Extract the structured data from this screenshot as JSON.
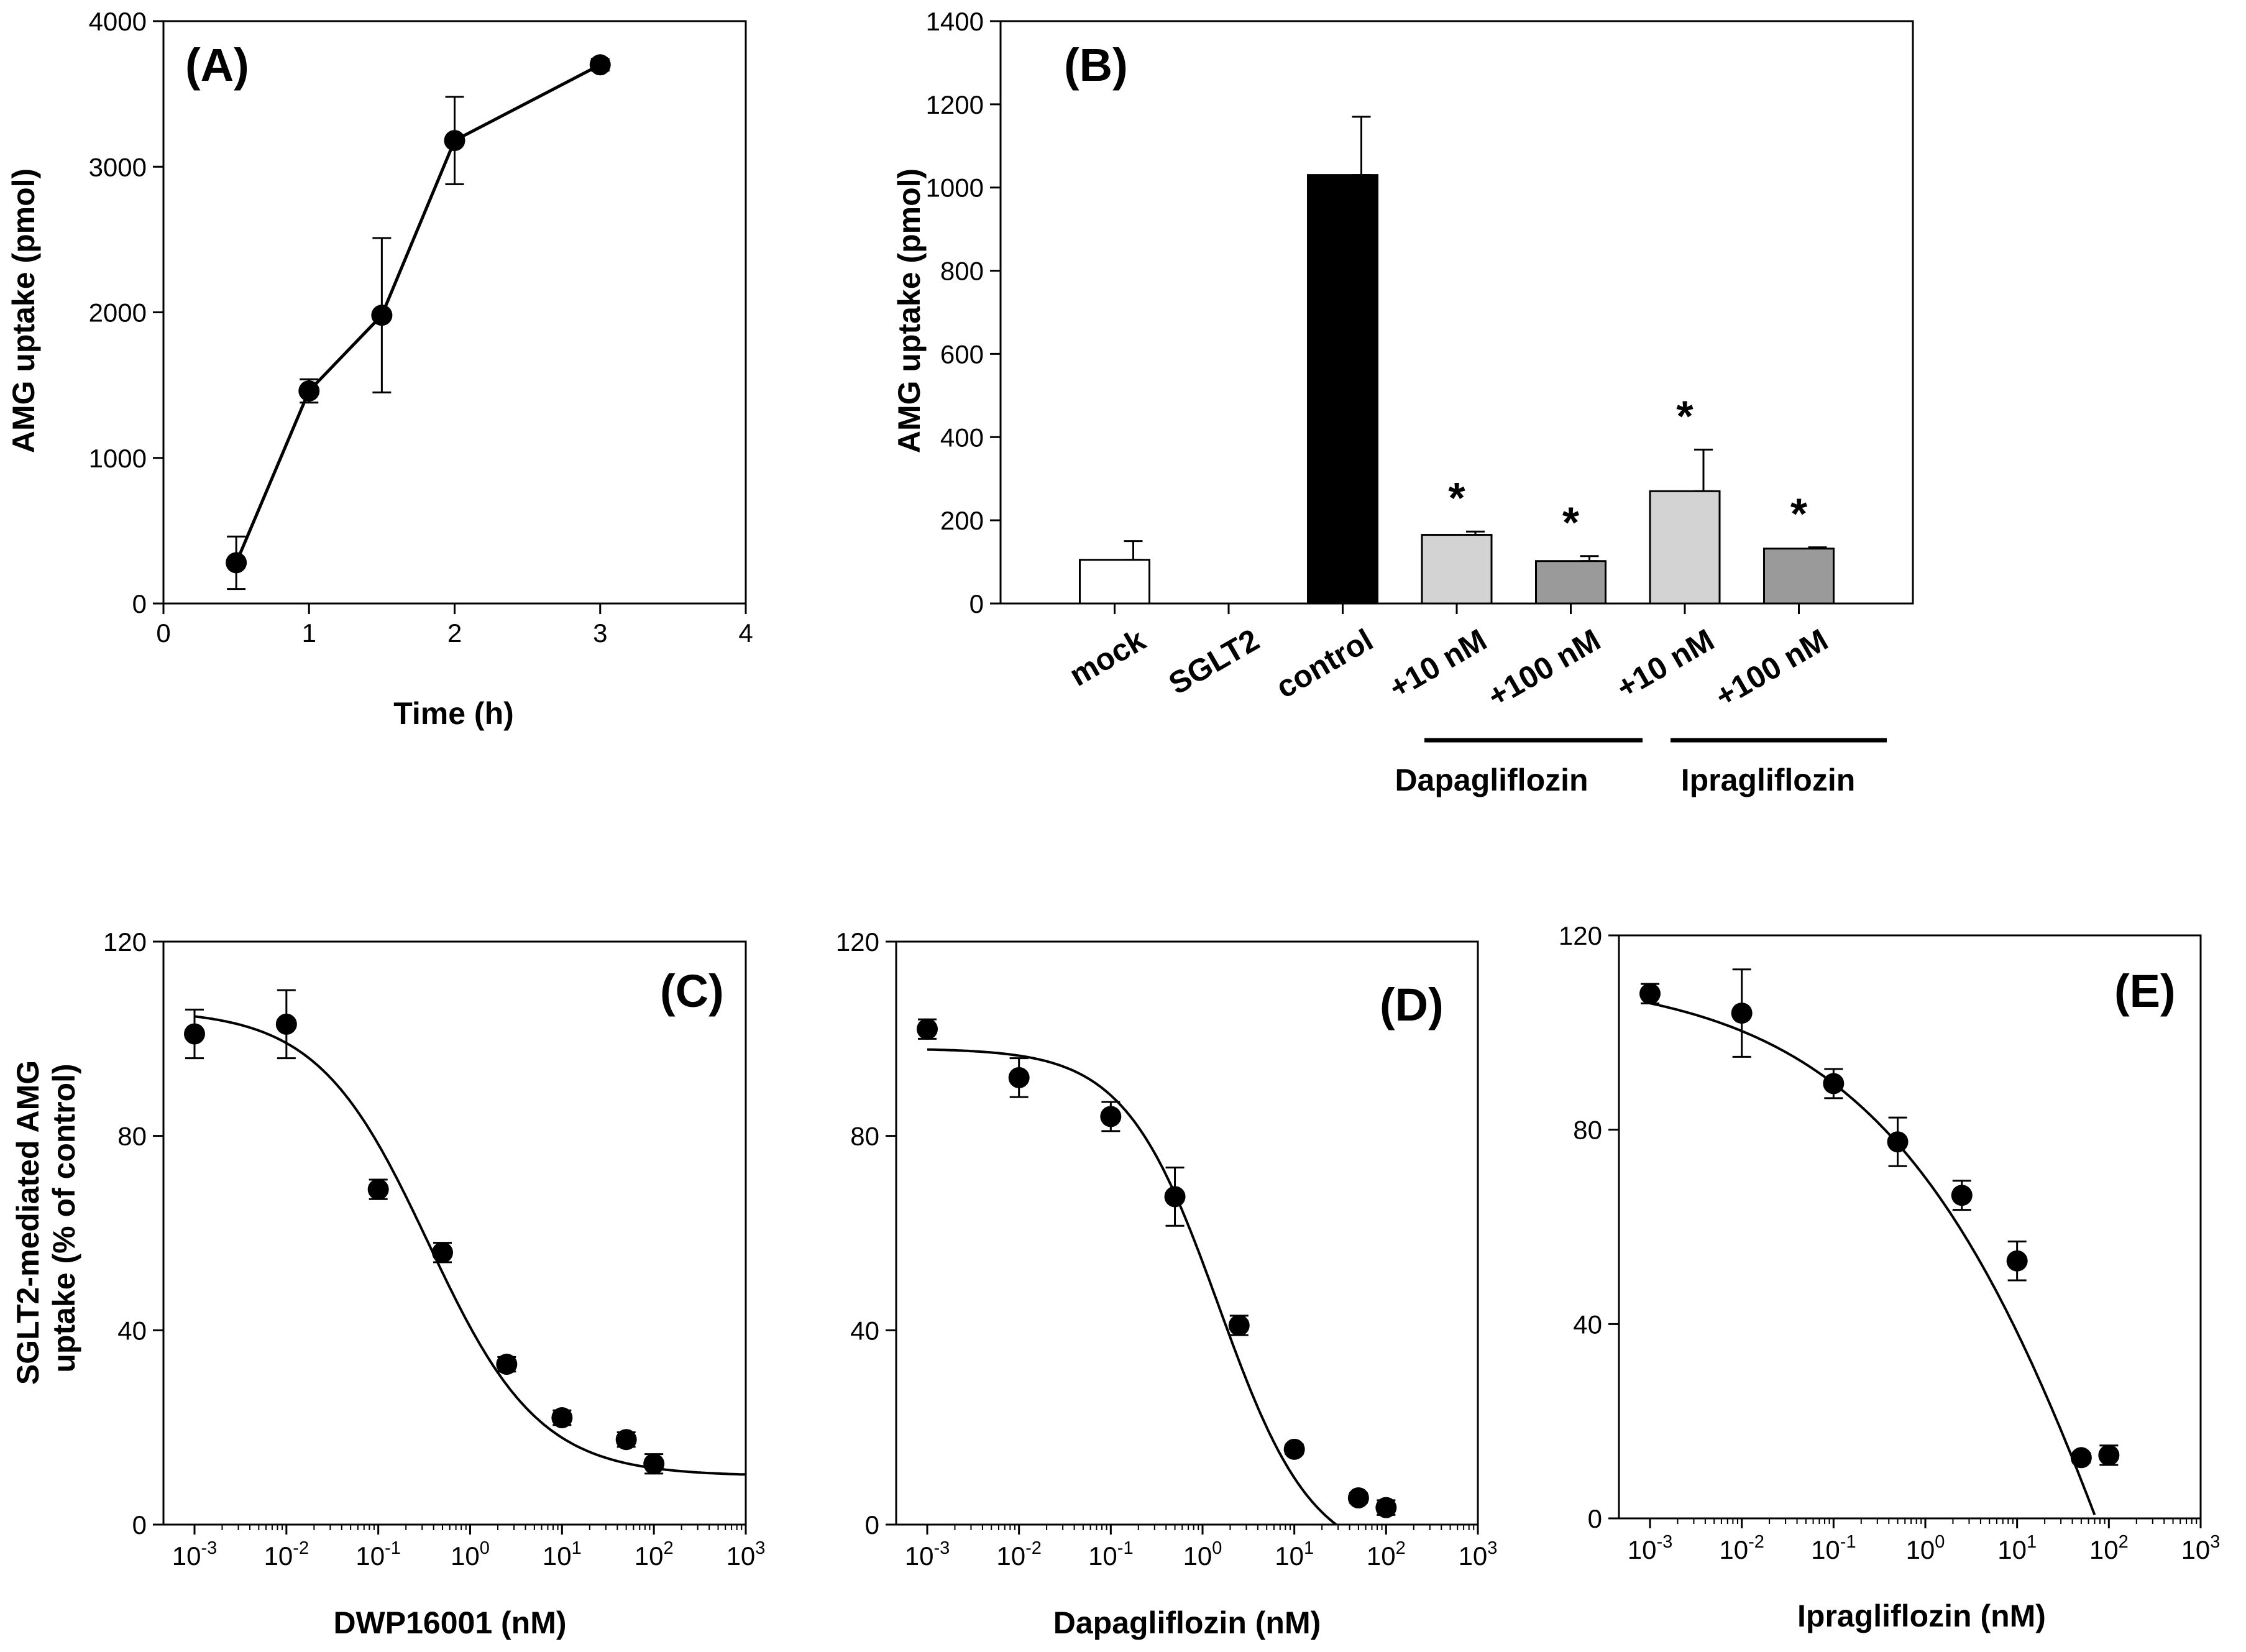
{
  "chart_data": [
    {
      "id": "A",
      "type": "line",
      "panel_label": "(A)",
      "xlabel": "Time (h)",
      "ylabel": "AMG uptake (pmol)",
      "xlim": [
        0,
        4
      ],
      "ylim": [
        0,
        4000
      ],
      "xticks": [
        "0",
        "1",
        "2",
        "3",
        "4"
      ],
      "yticks": [
        "0",
        "1000",
        "2000",
        "3000",
        "4000"
      ],
      "points": [
        {
          "x": 0.5,
          "y": 280,
          "err": 180
        },
        {
          "x": 1.0,
          "y": 1460,
          "err": 80
        },
        {
          "x": 1.5,
          "y": 1980,
          "err": 530
        },
        {
          "x": 2.0,
          "y": 3180,
          "err": 300
        },
        {
          "x": 3.0,
          "y": 3700,
          "err": 40
        }
      ]
    },
    {
      "id": "B",
      "type": "bar",
      "panel_label": "(B)",
      "ylabel": "AMG uptake (pmol)",
      "ylim": [
        0,
        1400
      ],
      "yticks": [
        "0",
        "200",
        "400",
        "600",
        "800",
        "1000",
        "1200",
        "1400"
      ],
      "categories": [
        "mock",
        "SGLT2",
        "control",
        "+10 nM",
        "+100 nM",
        "+10 nM",
        "+100 nM"
      ],
      "values": [
        105,
        0,
        1030,
        165,
        102,
        270,
        132
      ],
      "errors": [
        45,
        0,
        140,
        8,
        12,
        100,
        3
      ],
      "fills": [
        "#ffffff",
        "#ffffff",
        "#000000",
        "#d3d3d3",
        "#9a9a9a",
        "#d3d3d3",
        "#9a9a9a"
      ],
      "significance": [
        "",
        "",
        "",
        "*",
        "*",
        "*",
        "*"
      ],
      "groups": [
        {
          "label": "Dapagliflozin",
          "from": 3,
          "to": 4
        },
        {
          "label": "Ipragliflozin",
          "from": 5,
          "to": 6
        }
      ]
    },
    {
      "id": "C",
      "type": "scatter",
      "panel_label": "(C)",
      "xlabel": "DWP16001 (nM)",
      "ylabel": "SGLT2-mediated AMG\nuptake (% of control)",
      "xscale": "log",
      "xlim_exp": [
        -3,
        3
      ],
      "ylim": [
        0,
        120
      ],
      "yticks": [
        "0",
        "40",
        "80",
        "120"
      ],
      "xtick_exponents": [
        "-3",
        "-2",
        "-1",
        "0",
        "1",
        "2",
        "3"
      ],
      "points": [
        {
          "x": 0.001,
          "y": 101,
          "err": 5
        },
        {
          "x": 0.01,
          "y": 103,
          "err": 7
        },
        {
          "x": 0.1,
          "y": 69,
          "err": 2
        },
        {
          "x": 0.5,
          "y": 56,
          "err": 2
        },
        {
          "x": 2.5,
          "y": 33,
          "err": 1.5
        },
        {
          "x": 10,
          "y": 22,
          "err": 1.5
        },
        {
          "x": 50,
          "y": 17.5,
          "err": 1.5
        },
        {
          "x": 100,
          "y": 12.5,
          "err": 2
        }
      ],
      "fit": {
        "top": 106,
        "bottom": 10,
        "ic50": 0.35,
        "hill": 0.72
      }
    },
    {
      "id": "D",
      "type": "scatter",
      "panel_label": "(D)",
      "xlabel": "Dapagliflozin (nM)",
      "xscale": "log",
      "xlim_exp": [
        -3,
        3
      ],
      "ylim": [
        0,
        120
      ],
      "yticks": [
        "0",
        "40",
        "80",
        "120"
      ],
      "xtick_exponents": [
        "-3",
        "-2",
        "-1",
        "0",
        "1",
        "2",
        "3"
      ],
      "points": [
        {
          "x": 0.001,
          "y": 102,
          "err": 2
        },
        {
          "x": 0.01,
          "y": 92,
          "err": 4
        },
        {
          "x": 0.1,
          "y": 84,
          "err": 3
        },
        {
          "x": 0.5,
          "y": 67.5,
          "err": 6
        },
        {
          "x": 2.5,
          "y": 41,
          "err": 2
        },
        {
          "x": 10,
          "y": 15.5,
          "err": 1
        },
        {
          "x": 50,
          "y": 5.5,
          "err": 1
        },
        {
          "x": 100,
          "y": 3.5,
          "err": 1.5
        }
      ],
      "fit": {
        "top": 98,
        "bottom": -8,
        "ic50": 1.5,
        "hill": 0.85
      }
    },
    {
      "id": "E",
      "type": "scatter",
      "panel_label": "(E)",
      "xlabel": "Ipragliflozin (nM)",
      "xscale": "log",
      "xlim_exp": [
        -3,
        3
      ],
      "ylim": [
        0,
        120
      ],
      "yticks": [
        "0",
        "40",
        "80",
        "120"
      ],
      "xtick_exponents": [
        "-3",
        "-2",
        "-1",
        "0",
        "1",
        "2",
        "3"
      ],
      "points": [
        {
          "x": 0.001,
          "y": 108,
          "err": 2
        },
        {
          "x": 0.01,
          "y": 104,
          "err": 9
        },
        {
          "x": 0.1,
          "y": 89.5,
          "err": 3
        },
        {
          "x": 0.5,
          "y": 77.5,
          "err": 5
        },
        {
          "x": 2.5,
          "y": 66.5,
          "err": 3
        },
        {
          "x": 10,
          "y": 53,
          "err": 4
        },
        {
          "x": 50,
          "y": 12.5,
          "err": 1
        },
        {
          "x": 100,
          "y": 13,
          "err": 2
        }
      ],
      "fit": {
        "top": 112,
        "bottom": -200,
        "ic50": 500,
        "hill": 0.3
      }
    }
  ]
}
